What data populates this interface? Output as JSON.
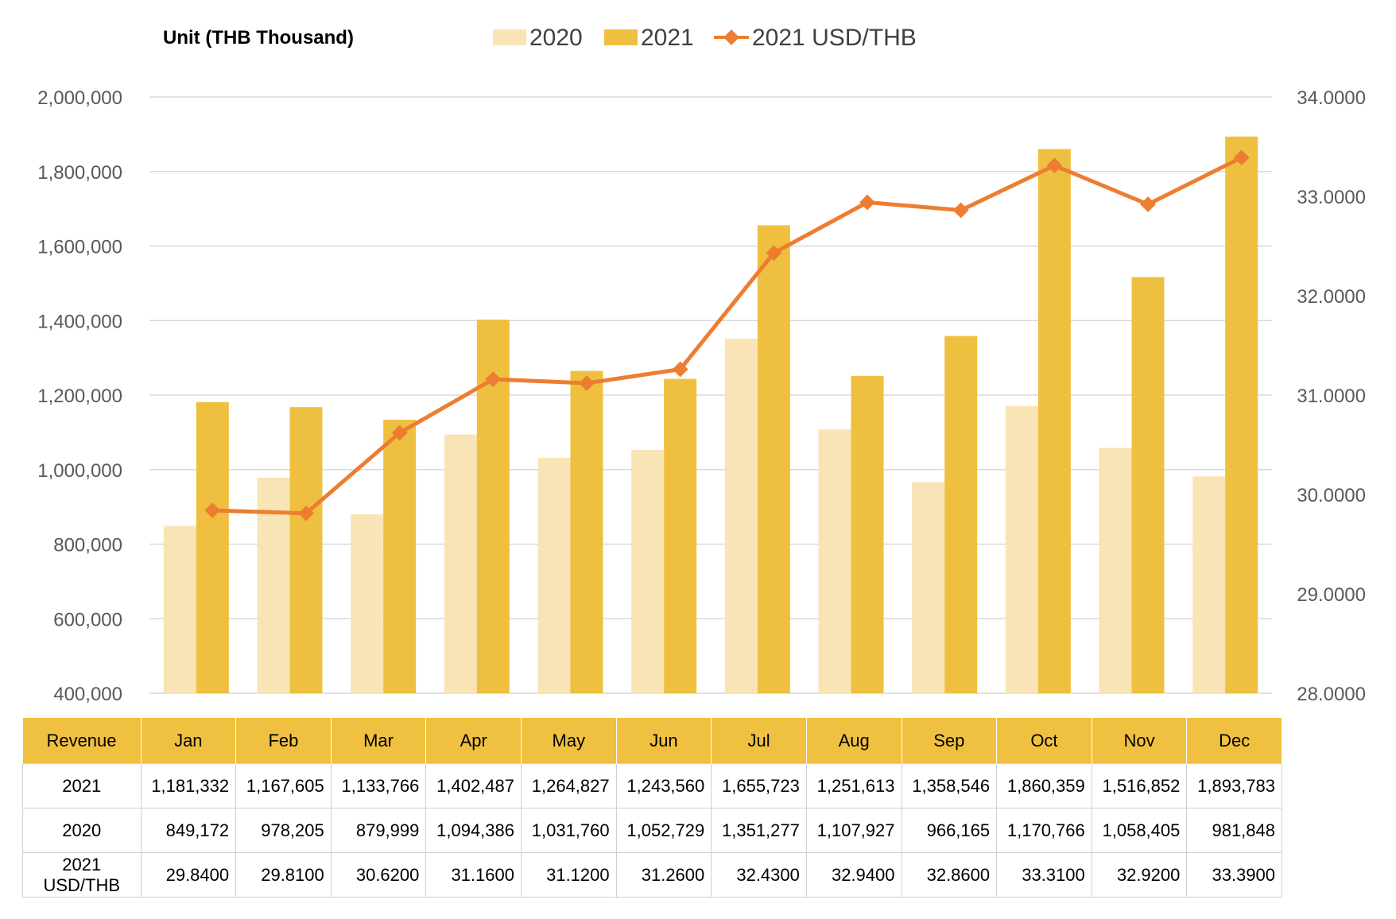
{
  "chart_data": {
    "type": "bar",
    "unit_label": "Unit (THB  Thousand)",
    "categories": [
      "Jan",
      "Feb",
      "Mar",
      "Apr",
      "May",
      "Jun",
      "Jul",
      "Aug",
      "Sep",
      "Oct",
      "Nov",
      "Dec"
    ],
    "series": [
      {
        "name": "2020",
        "type": "bar",
        "axis": "left",
        "color": "#f8e4b4",
        "values": [
          849172,
          978205,
          879999,
          1094386,
          1031760,
          1052729,
          1351277,
          1107927,
          966165,
          1170766,
          1058405,
          981848
        ]
      },
      {
        "name": "2021",
        "type": "bar",
        "axis": "left",
        "color": "#efc040",
        "values": [
          1181332,
          1167605,
          1133766,
          1402487,
          1264827,
          1243560,
          1655723,
          1251613,
          1358546,
          1860359,
          1516852,
          1893783
        ]
      },
      {
        "name": "2021 USD/THB",
        "type": "line",
        "axis": "right",
        "color": "#ed7d31",
        "values": [
          29.84,
          29.81,
          30.62,
          31.16,
          31.12,
          31.26,
          32.43,
          32.94,
          32.86,
          33.31,
          32.92,
          33.39
        ]
      }
    ],
    "y_left": {
      "min": 400000,
      "max": 2000000,
      "step": 200000,
      "ticks": [
        "400,000",
        "600,000",
        "800,000",
        "1,000,000",
        "1,200,000",
        "1,400,000",
        "1,600,000",
        "1,800,000",
        "2,000,000"
      ]
    },
    "y_right": {
      "min": 28,
      "max": 34,
      "step": 1,
      "ticks": [
        "28.0000",
        "29.0000",
        "30.0000",
        "31.0000",
        "32.0000",
        "33.0000",
        "34.0000"
      ]
    },
    "grid": true,
    "legend_position": "top"
  },
  "table": {
    "header": {
      "label": "Revenue",
      "months": [
        "Jan",
        "Feb",
        "Mar",
        "Apr",
        "May",
        "Jun",
        "Jul",
        "Aug",
        "Sep",
        "Oct",
        "Nov",
        "Dec"
      ]
    },
    "rows": [
      {
        "label_line1": "2021",
        "label_line2": "",
        "cells": [
          "1,181,332",
          "1,167,605",
          "1,133,766",
          "1,402,487",
          "1,264,827",
          "1,243,560",
          "1,655,723",
          "1,251,613",
          "1,358,546",
          "1,860,359",
          "1,516,852",
          "1,893,783"
        ]
      },
      {
        "label_line1": "2020",
        "label_line2": "",
        "cells": [
          "849,172",
          "978,205",
          "879,999",
          "1,094,386",
          "1,031,760",
          "1,052,729",
          "1,351,277",
          "1,107,927",
          "966,165",
          "1,170,766",
          "1,058,405",
          "981,848"
        ]
      },
      {
        "label_line1": "2021",
        "label_line2": "USD/THB",
        "cells": [
          "29.8400",
          "29.8100",
          "30.6200",
          "31.1600",
          "31.1200",
          "31.2600",
          "32.4300",
          "32.9400",
          "32.8600",
          "33.3100",
          "32.9200",
          "33.3900"
        ]
      }
    ]
  }
}
